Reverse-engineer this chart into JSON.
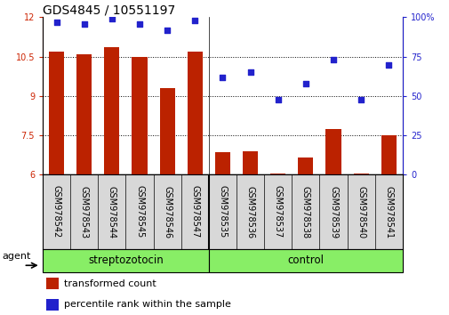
{
  "title": "GDS4845 / 10551197",
  "samples": [
    "GSM978542",
    "GSM978543",
    "GSM978544",
    "GSM978545",
    "GSM978546",
    "GSM978547",
    "GSM978535",
    "GSM978536",
    "GSM978537",
    "GSM978538",
    "GSM978539",
    "GSM978540",
    "GSM978541"
  ],
  "bar_values": [
    10.7,
    10.6,
    10.85,
    10.5,
    9.3,
    10.7,
    6.85,
    6.9,
    6.05,
    6.65,
    7.75,
    6.05,
    7.5
  ],
  "scatter_values": [
    97,
    96,
    99,
    96,
    92,
    98,
    62,
    65,
    48,
    58,
    73,
    48,
    70
  ],
  "bar_color": "#bb2200",
  "scatter_color": "#2222cc",
  "ylim_left": [
    6,
    12
  ],
  "ylim_right": [
    0,
    100
  ],
  "yticks_left": [
    6,
    7.5,
    9,
    10.5,
    12
  ],
  "ytick_labels_left": [
    "6",
    "7.5",
    "9",
    "10.5",
    "12"
  ],
  "yticks_right": [
    0,
    25,
    50,
    75,
    100
  ],
  "ytick_labels_right": [
    "0",
    "25",
    "50",
    "75",
    "100%"
  ],
  "agent_label": "agent",
  "legend_bar_label": "transformed count",
  "legend_scatter_label": "percentile rank within the sample",
  "grid_dotted_yticks": [
    7.5,
    9,
    10.5
  ],
  "bar_bottom": 6,
  "bar_width": 0.55,
  "plot_bg_color": "#ffffff",
  "xtick_bg_color": "#d8d8d8",
  "green_color": "#88ee66",
  "title_fontsize": 10,
  "tick_fontsize": 7,
  "label_fontsize": 8,
  "group_label_fontsize": 8.5
}
